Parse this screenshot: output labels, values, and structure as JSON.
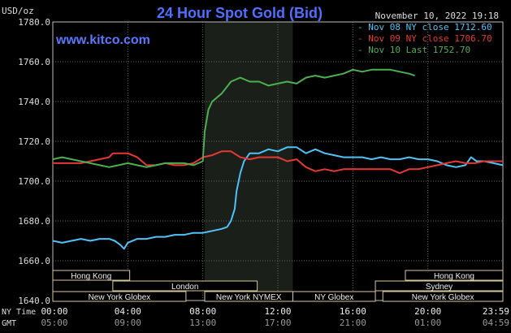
{
  "chart_data": {
    "type": "line",
    "title": "24 Hour Spot Gold (Bid)",
    "ylabel": "USD/oz",
    "watermark": "www.kitco.com",
    "timestamp": "November 10, 2022 19:18",
    "ylim": [
      1640,
      1780
    ],
    "yticks": [
      "1780.0",
      "1760.0",
      "1740.0",
      "1720.0",
      "1700.0",
      "1680.0",
      "1660.0",
      "1640.0"
    ],
    "xlim": [
      0,
      24
    ],
    "time_rows": [
      {
        "label": "NY Time",
        "ticks": [
          "00:00",
          "04:00",
          "08:00",
          "12:00",
          "16:00",
          "20:00",
          "23:59"
        ]
      },
      {
        "label": "GMT",
        "ticks": [
          "05:00",
          "09:00",
          "13:00",
          "17:00",
          "21:00",
          "01:00",
          "04:59"
        ]
      }
    ],
    "grid": true,
    "legend_position": "top-right",
    "highlight_session": [
      8.1,
      12.8
    ],
    "sessions": [
      {
        "label": "Hong Kong",
        "start": 0,
        "end": 4.1
      },
      {
        "label": "London",
        "start": 3.2,
        "end": 10.9
      },
      {
        "label": "New York Globex",
        "start": 0,
        "end": 7.1
      },
      {
        "label": "New York NYMEX",
        "start": 8.1,
        "end": 12.8
      },
      {
        "label": "NY Globex",
        "start": 12.8,
        "end": 17.2
      },
      {
        "label": "Hong Kong",
        "start": 18.8,
        "end": 24
      },
      {
        "label": "Sydney",
        "start": 17.2,
        "end": 24
      },
      {
        "label": "New York Globex",
        "start": 17.6,
        "end": 24
      }
    ],
    "series": [
      {
        "name": "Nov 08 NY close 1712.60",
        "color": "#4fc3f7",
        "x": [
          0,
          0.5,
          1,
          1.5,
          2,
          2.5,
          3,
          3.3,
          3.6,
          3.8,
          4,
          4.5,
          5,
          5.5,
          6,
          6.5,
          7,
          7.5,
          8,
          8.5,
          9,
          9.3,
          9.5,
          9.7,
          9.8,
          10,
          10.2,
          10.5,
          11,
          11.5,
          12,
          12.5,
          13,
          13.5,
          14,
          14.5,
          15,
          15.5,
          16,
          16.5,
          17,
          17.5,
          18,
          18.5,
          19,
          19.5,
          20,
          20.5,
          21,
          21.5,
          22,
          22.3,
          22.6,
          23,
          23.5,
          24
        ],
        "y": [
          1670,
          1669,
          1670,
          1671,
          1670,
          1671,
          1671,
          1670,
          1668,
          1666,
          1669,
          1671,
          1671,
          1672,
          1672,
          1673,
          1673,
          1674,
          1674,
          1675,
          1676,
          1677,
          1680,
          1686,
          1695,
          1704,
          1710,
          1714,
          1714,
          1716,
          1715,
          1717,
          1717,
          1714,
          1716,
          1714,
          1713,
          1712,
          1712,
          1712,
          1711,
          1712,
          1711,
          1711,
          1712,
          1711,
          1711,
          1710,
          1708,
          1707,
          1708,
          1712,
          1710,
          1710,
          1709,
          1708
        ]
      },
      {
        "name": "Nov 09 NY close 1706.70",
        "color": "#e53935",
        "x": [
          0,
          0.5,
          1,
          1.5,
          2,
          2.5,
          3,
          3.2,
          3.5,
          4,
          4.5,
          5,
          5.5,
          6,
          6.5,
          7,
          7.5,
          8,
          8.5,
          9,
          9.5,
          10,
          10.5,
          11,
          11.5,
          12,
          12.5,
          13,
          13.5,
          14,
          14.5,
          15,
          15.5,
          16,
          16.5,
          17,
          17.5,
          18,
          18.5,
          19,
          19.5,
          20,
          20.5,
          21,
          21.5,
          22,
          22.5,
          23,
          23.5,
          24
        ],
        "y": [
          1709,
          1709,
          1709,
          1709,
          1710,
          1711,
          1712,
          1714,
          1714,
          1714,
          1712,
          1708,
          1708,
          1709,
          1708,
          1708,
          1709,
          1712,
          1713,
          1715,
          1715,
          1712,
          1711,
          1712,
          1712,
          1712,
          1710,
          1711,
          1707,
          1705,
          1706,
          1705,
          1706,
          1706,
          1706,
          1706,
          1706,
          1706,
          1704,
          1706,
          1706,
          1707,
          1708,
          1709,
          1710,
          1709,
          1709,
          1710,
          1710,
          1710
        ]
      },
      {
        "name": "Nov 10 Last 1752.70",
        "color": "#4caf50",
        "x": [
          0,
          0.5,
          1,
          1.5,
          2,
          2.5,
          3,
          3.5,
          4,
          4.5,
          5,
          5.5,
          6,
          6.5,
          7,
          7.5,
          8,
          8.1,
          8.3,
          8.5,
          9,
          9.5,
          10,
          10.5,
          11,
          11.5,
          12,
          12.5,
          13,
          13.5,
          14,
          14.5,
          15,
          15.5,
          16,
          16.5,
          17,
          17.5,
          18,
          18.5,
          19,
          19.3
        ],
        "y": [
          1711,
          1712,
          1711,
          1710,
          1709,
          1708,
          1707,
          1708,
          1709,
          1708,
          1707,
          1708,
          1709,
          1709,
          1709,
          1708,
          1710,
          1725,
          1736,
          1740,
          1744,
          1750,
          1752,
          1750,
          1750,
          1748,
          1749,
          1750,
          1749,
          1752,
          1753,
          1752,
          1753,
          1754,
          1756,
          1755,
          1756,
          1756,
          1756,
          1755,
          1754,
          1753
        ]
      }
    ]
  }
}
